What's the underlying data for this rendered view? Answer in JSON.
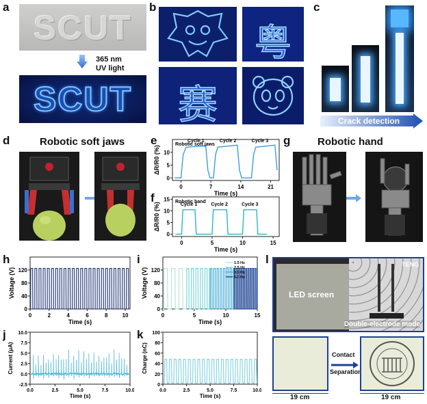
{
  "panel_labels": {
    "a": "a",
    "b": "b",
    "c": "c",
    "d": "d",
    "e": "e",
    "f": "f",
    "g": "g",
    "h": "h",
    "i": "i",
    "j": "j",
    "k": "k",
    "l": "l"
  },
  "panel_a": {
    "word_top": "SCUT",
    "word_bottom": "SCUT",
    "uv_label_1": "365 nm",
    "uv_label_2": "UV light"
  },
  "panel_b": {
    "chars": [
      "粤",
      "赛"
    ]
  },
  "panel_c": {
    "arrow_label": "Crack detection"
  },
  "panel_d": {
    "title": "Robotic soft jaws"
  },
  "panel_g": {
    "title": "Robotic hand"
  },
  "panel_l": {
    "tag_corner": "TENG",
    "led_label": "LED screen",
    "mode_label": "Double-electrode mode",
    "contact_label": "Contact",
    "separation_label": "Separation",
    "dim_left": "19 cm",
    "dim_right": "19 cm"
  },
  "colors": {
    "uv_blue": "#2f7fe0",
    "trace_e": "#3a9fd8",
    "trace_f": "#2bb5c8",
    "trace_h": "#2b3f7a",
    "trace_j": "#4ab4d8",
    "trace_k": "#7fd0e0",
    "frame_blue": "#1f3f8f"
  },
  "chart_data": [
    {
      "id": "e",
      "type": "line",
      "annotation": "Robotic soft jaws",
      "ylabel": "ΔR/R0 (%)",
      "xlabel": "Time (s)",
      "yticks": [
        "0",
        "5",
        "10"
      ],
      "xticks": [
        "0",
        "7",
        "14",
        "21"
      ],
      "xlim": [
        -2,
        23
      ],
      "ylim": [
        -1,
        15
      ],
      "cycle_labels": [
        "Cycle 1",
        "Cycle 2",
        "Cycle 3"
      ],
      "series": [
        {
          "x": [
            -1.5,
            0,
            0.5,
            1.2,
            5.8,
            6.3,
            6.8,
            7.6,
            8.1,
            8.6,
            13.2,
            13.7,
            14.2,
            16.5,
            17,
            17.5,
            22,
            22.5
          ],
          "values": [
            0,
            0,
            9,
            12,
            12.5,
            3,
            0,
            0,
            9,
            12,
            12.8,
            3,
            0,
            0,
            9,
            12,
            12.8,
            3
          ]
        }
      ]
    },
    {
      "id": "f",
      "type": "line",
      "annotation": "Robotic hand",
      "ylabel": "ΔR/R0 (%)",
      "xlabel": "Time (s)",
      "yticks": [
        "0",
        "5",
        "10",
        "15"
      ],
      "xticks": [
        "0",
        "5",
        "10",
        "15"
      ],
      "xlim": [
        -1.5,
        16
      ],
      "ylim": [
        -1,
        16
      ],
      "cycle_labels": [
        "Cycle 1",
        "Cycle 2",
        "Cycle 3"
      ],
      "series": [
        {
          "x": [
            -1,
            0,
            0.2,
            2.2,
            2.4,
            4.8,
            5,
            5.2,
            7.4,
            7.6,
            9.8,
            10,
            10.2,
            12.3,
            12.5,
            14
          ],
          "values": [
            0,
            0,
            10.5,
            10.5,
            0,
            0,
            0,
            10.5,
            10.5,
            0,
            0,
            0,
            10.5,
            10.5,
            0,
            0
          ]
        }
      ]
    },
    {
      "id": "h",
      "type": "line",
      "ylabel": "Voltage (V)",
      "xlabel": "Time (s)",
      "yticks": [
        "0",
        "40",
        "80",
        "120"
      ],
      "xticks": [
        "0",
        "2",
        "4",
        "6",
        "8",
        "10"
      ],
      "xlim": [
        0,
        10.5
      ],
      "ylim": [
        0,
        160
      ],
      "pulse_amplitude": 125,
      "pulse_count": 24
    },
    {
      "id": "i",
      "type": "line",
      "ylabel": "Voltage (V)",
      "xlabel": "Time (s)",
      "yticks": [
        "0",
        "40",
        "80",
        "120"
      ],
      "xticks": [
        "0",
        "5",
        "10",
        "15"
      ],
      "xlim": [
        0,
        15
      ],
      "ylim": [
        0,
        160
      ],
      "legend": [
        "1.5 Hz",
        "2.5 Hz",
        "3.5 Hz",
        "5.0 Hz"
      ],
      "legend_colors": [
        "#b8e6d8",
        "#7fd4d8",
        "#4fb0d8",
        "#2b4f9a"
      ],
      "segments": [
        {
          "t0": 0,
          "t1": 3.7,
          "hz": 1.5
        },
        {
          "t0": 3.7,
          "t1": 7.5,
          "hz": 2.5
        },
        {
          "t0": 7.5,
          "t1": 11.3,
          "hz": 3.5
        },
        {
          "t0": 11.3,
          "t1": 15,
          "hz": 5.0
        }
      ],
      "pulse_amplitude": 125
    },
    {
      "id": "j",
      "type": "line",
      "ylabel": "Current (μA)",
      "xlabel": "Time (s)",
      "yticks": [
        "-2.5",
        "0.0",
        "2.5",
        "5.0",
        "7.5",
        "10.0"
      ],
      "xticks": [
        "0.0",
        "2.5",
        "5.0",
        "7.5",
        "10.0"
      ],
      "xlim": [
        0,
        10
      ],
      "ylim": [
        -2.5,
        10
      ],
      "spike_count": 19,
      "spike_max": 6.0
    },
    {
      "id": "k",
      "type": "line",
      "ylabel": "Charge (nC)",
      "xlabel": "Time (s)",
      "yticks": [
        "0",
        "20",
        "40",
        "60",
        "80",
        "100"
      ],
      "xticks": [
        "0.0",
        "2.5",
        "5.0",
        "7.5",
        "10.0"
      ],
      "xlim": [
        0,
        10
      ],
      "ylim": [
        0,
        100
      ],
      "pulse_count": 20,
      "pulse_amplitude": 48
    }
  ]
}
